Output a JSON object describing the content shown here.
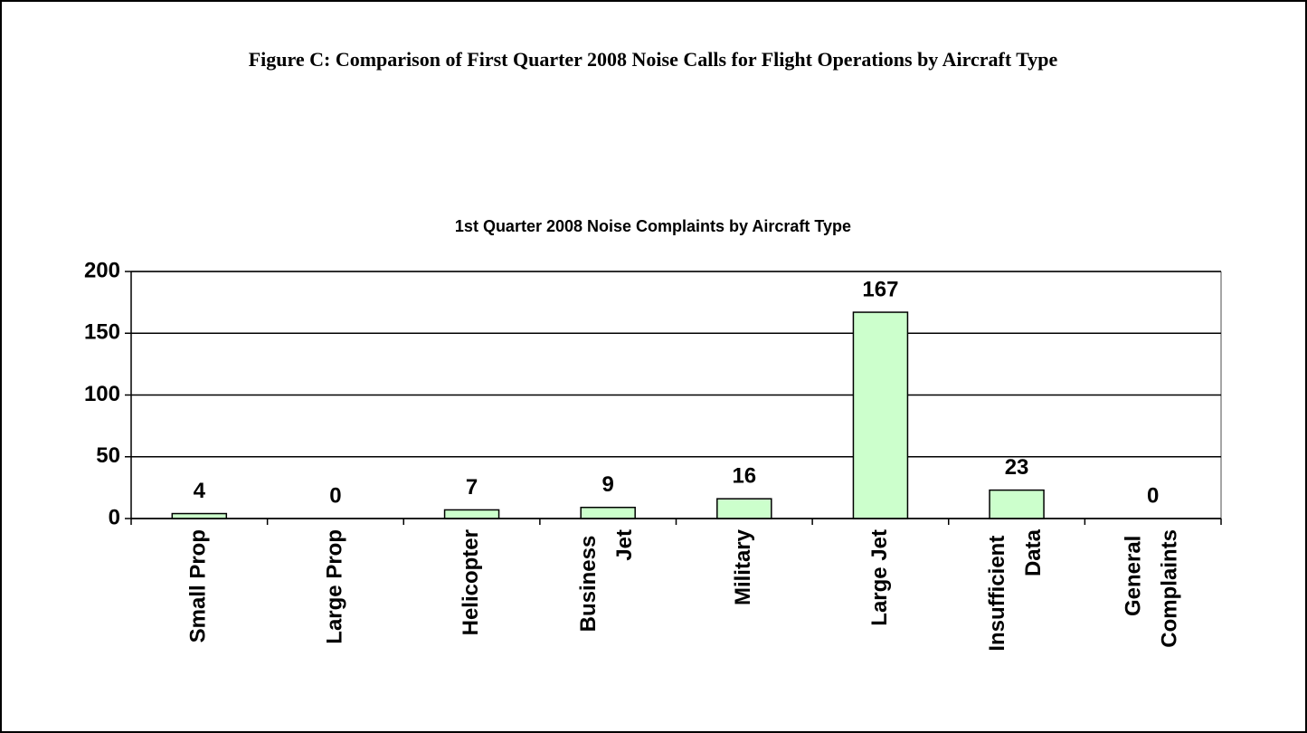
{
  "figure_title": "Figure C:  Comparison of First Quarter 2008 Noise Calls for Flight Operations by Aircraft Type",
  "chart_data": {
    "type": "bar",
    "title": "1st Quarter 2008 Noise Complaints by Aircraft Type",
    "categories": [
      "Small Prop",
      "Large Prop",
      "Helicopter",
      "Business Jet",
      "Military",
      "Large Jet",
      "Insufficient Data",
      "General Complaints"
    ],
    "values": [
      4,
      0,
      7,
      9,
      16,
      167,
      23,
      0
    ],
    "color": "#ccffcc",
    "ylim": [
      0,
      200
    ],
    "yticks": [
      0,
      50,
      100,
      150,
      200
    ],
    "grid": true
  }
}
